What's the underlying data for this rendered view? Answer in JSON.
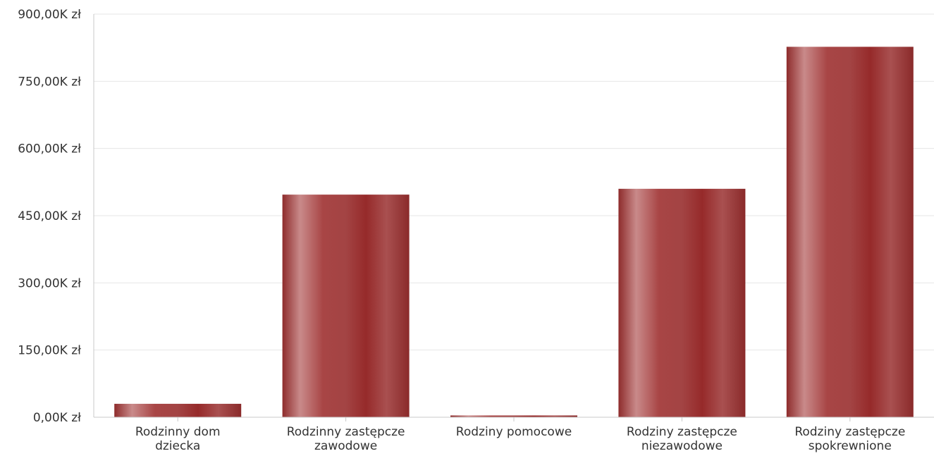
{
  "chart_data": {
    "type": "bar",
    "title": "",
    "xlabel": "",
    "ylabel": "",
    "categories": [
      [
        "Rodzinny dom",
        "dziecka"
      ],
      [
        "Rodzinny zastępcze",
        "zawodowe"
      ],
      [
        "Rodziny pomocowe"
      ],
      [
        "Rodziny zastępcze",
        "niezawodowe"
      ],
      [
        "Rodziny zastępcze",
        "spokrewnione"
      ]
    ],
    "values": [
      30,
      497,
      4,
      510,
      827
    ],
    "ylim": [
      0,
      900
    ],
    "yticks": [
      0,
      150,
      300,
      450,
      600,
      750,
      900
    ],
    "ytick_labels": [
      "0,00K zł",
      "150,00K zł",
      "300,00K zł",
      "450,00K zł",
      "600,00K zł",
      "750,00K zł",
      "900,00K zł"
    ],
    "grid": true,
    "legend": "none",
    "colors": {
      "bar_edge": "#8e2c2c",
      "bar_mid": "#a84545",
      "bar_highlight": "#c98a8a",
      "bar_dark": "#962a2a"
    }
  }
}
